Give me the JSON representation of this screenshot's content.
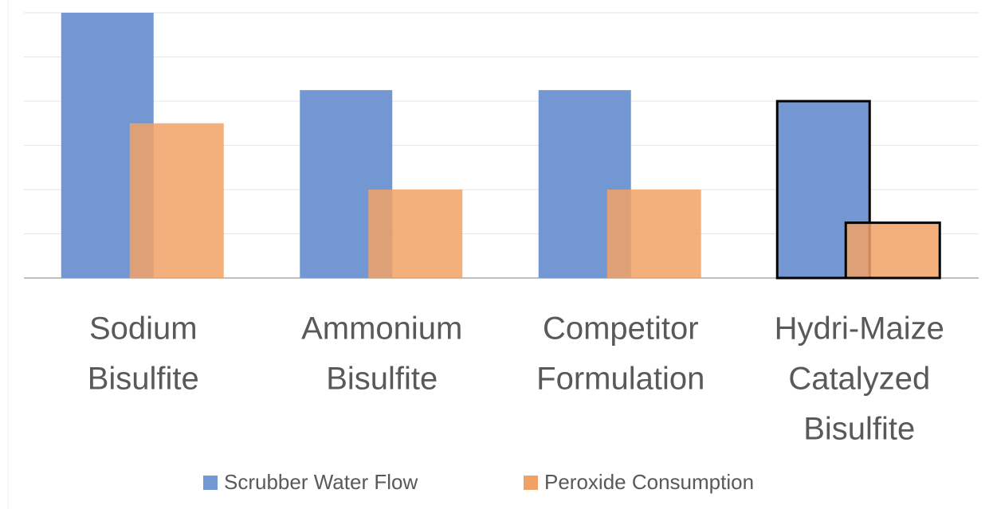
{
  "chart_data": {
    "type": "bar",
    "categories": [
      [
        "Sodium",
        "Bisulfite"
      ],
      [
        "Ammonium",
        "Bisulfite"
      ],
      [
        "Competitor",
        "Formulation"
      ],
      [
        "Hydri-Maize",
        "Catalyzed",
        "Bisulfite"
      ]
    ],
    "series": [
      {
        "name": "Scrubber Water Flow",
        "color": "#7297d3",
        "values": [
          6,
          4.25,
          4.25,
          4
        ]
      },
      {
        "name": "Peroxide Consumption",
        "color": "#f1a165",
        "values": [
          3.5,
          2,
          2,
          1.25
        ]
      }
    ],
    "ylim": [
      0,
      6
    ],
    "yticks": [
      0,
      1,
      2,
      3,
      4,
      5,
      6
    ],
    "grid": true,
    "outlined_category": 3,
    "outline_color": "#000000"
  }
}
